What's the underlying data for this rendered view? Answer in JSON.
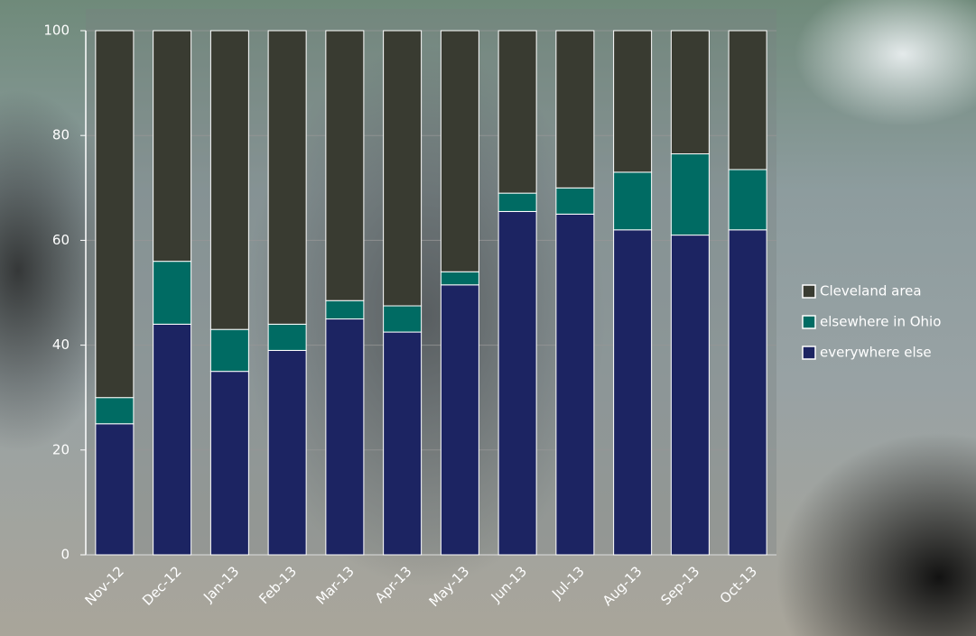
{
  "chart_data": {
    "type": "stacked_bar",
    "categories": [
      "Nov-12",
      "Dec-12",
      "Jan-13",
      "Feb-13",
      "Mar-13",
      "Apr-13",
      "May-13",
      "Jun-13",
      "Jul-13",
      "Aug-13",
      "Sep-13",
      "Oct-13"
    ],
    "series": [
      {
        "name": "Cleveland area",
        "color": "#393b31",
        "values": [
          70,
          44,
          57,
          56,
          51.5,
          52.5,
          46,
          31,
          30,
          27,
          23.5,
          26.5
        ]
      },
      {
        "name": "elsewhere in Ohio",
        "color": "#006b63",
        "values": [
          5,
          12,
          8,
          5,
          3.5,
          5,
          2.5,
          3.5,
          5,
          11,
          15.5,
          11.5
        ]
      },
      {
        "name": "everywhere else",
        "color": "#1c2462",
        "values": [
          25,
          44,
          35,
          39,
          45,
          42.5,
          51.5,
          65.5,
          65,
          62,
          61,
          62
        ]
      }
    ],
    "ylim": [
      0,
      100
    ],
    "yticks": [
      0,
      20,
      40,
      60,
      80,
      100
    ],
    "grid": true
  }
}
